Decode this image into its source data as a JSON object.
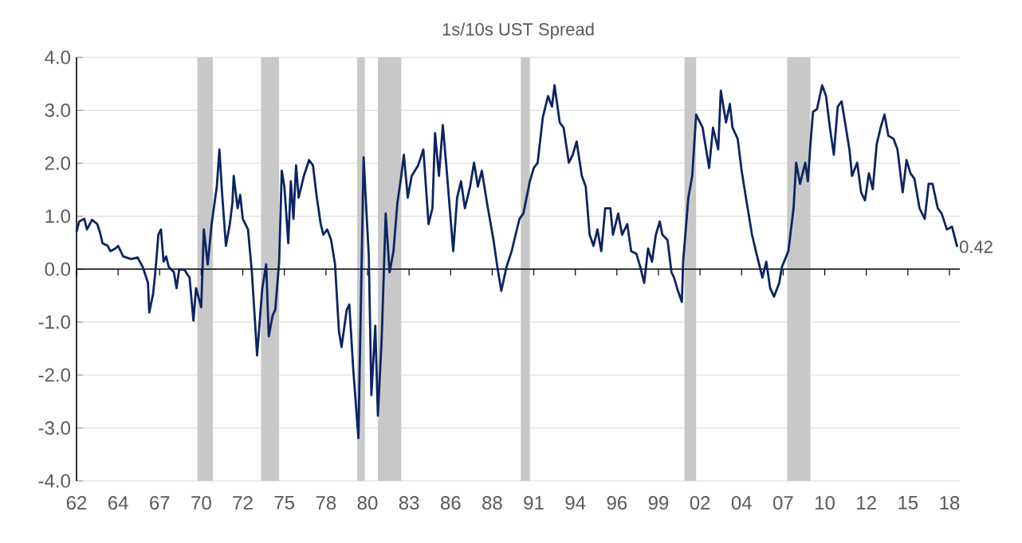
{
  "chart_data": {
    "type": "line",
    "title": "1s/10s UST Spread",
    "x": [
      "1962-01",
      "1962-03",
      "1962-07",
      "1962-09",
      "1963-01",
      "1963-05",
      "1963-07",
      "1963-09",
      "1964-01",
      "1964-03",
      "1964-07",
      "1964-09",
      "1965-01",
      "1965-07",
      "1965-12",
      "1966-04",
      "1966-08",
      "1966-09",
      "1966-12",
      "1967-02",
      "1967-04",
      "1967-06",
      "1967-08",
      "1967-10",
      "1967-12",
      "1968-04",
      "1968-06",
      "1968-08",
      "1968-12",
      "1969-04",
      "1969-07",
      "1969-09",
      "1970-01",
      "1970-03",
      "1970-06",
      "1970-09",
      "1971-01",
      "1971-03",
      "1971-05",
      "1971-08",
      "1971-11",
      "1972-01",
      "1972-02",
      "1972-05",
      "1972-07",
      "1972-09",
      "1973-01",
      "1973-04",
      "1973-08",
      "1973-12",
      "1974-03",
      "1974-05",
      "1974-08",
      "1974-10",
      "1975-01",
      "1975-03",
      "1975-05",
      "1975-08",
      "1975-10",
      "1975-12",
      "1976-02",
      "1976-04",
      "1976-08",
      "1976-12",
      "1977-03",
      "1977-06",
      "1977-09",
      "1977-11",
      "1978-02",
      "1978-05",
      "1978-08",
      "1978-11",
      "1979-01",
      "1979-05",
      "1979-07",
      "1979-10",
      "1980-02",
      "1980-06",
      "1980-10",
      "1980-12",
      "1981-03",
      "1981-05",
      "1981-08",
      "1981-11",
      "1982-02",
      "1982-05",
      "1982-08",
      "1982-11",
      "1983-01",
      "1983-04",
      "1983-07",
      "1983-12",
      "1984-04",
      "1984-08",
      "1984-11",
      "1985-01",
      "1985-04",
      "1985-07",
      "1985-10",
      "1985-12",
      "1986-03",
      "1986-06",
      "1986-09",
      "1986-12",
      "1987-04",
      "1987-07",
      "1987-10",
      "1988-01",
      "1988-05",
      "1988-10",
      "1989-01",
      "1989-04",
      "1989-08",
      "1989-12",
      "1990-03",
      "1990-06",
      "1990-09",
      "1991-02",
      "1991-05",
      "1991-08",
      "1991-12",
      "1992-04",
      "1992-07",
      "1992-09",
      "1993-01",
      "1993-04",
      "1993-08",
      "1993-11",
      "1994-02",
      "1994-06",
      "1994-09",
      "1994-12",
      "1995-03",
      "1995-06",
      "1995-09",
      "1995-12",
      "1996-04",
      "1996-06",
      "1996-10",
      "1997-01",
      "1997-05",
      "1997-08",
      "1997-12",
      "1998-03",
      "1998-06",
      "1998-09",
      "1998-12",
      "1999-03",
      "1999-06",
      "1999-08",
      "1999-12",
      "2000-03",
      "2000-05",
      "2000-08",
      "2000-11",
      "2000-12",
      "2001-04",
      "2001-07",
      "2001-10",
      "2002-03",
      "2002-08",
      "2002-11",
      "2003-03",
      "2003-05",
      "2003-09",
      "2003-12",
      "2004-02",
      "2004-06",
      "2004-09",
      "2005-01",
      "2005-05",
      "2005-08",
      "2005-11",
      "2006-01",
      "2006-04",
      "2006-07",
      "2006-10",
      "2007-02",
      "2007-04",
      "2007-09",
      "2008-01",
      "2008-03",
      "2008-06",
      "2008-10",
      "2008-12",
      "2009-02",
      "2009-04",
      "2009-07",
      "2009-11",
      "2010-02",
      "2010-05",
      "2010-08",
      "2010-11",
      "2011-02",
      "2011-04",
      "2011-08",
      "2011-10",
      "2012-02",
      "2012-05",
      "2012-08",
      "2012-11",
      "2013-02",
      "2013-05",
      "2013-08",
      "2013-11",
      "2014-02",
      "2014-06",
      "2014-09",
      "2015-01",
      "2015-04",
      "2015-07",
      "2015-10",
      "2016-02",
      "2016-06",
      "2016-09",
      "2016-12",
      "2017-04",
      "2017-07",
      "2017-11",
      "2018-03",
      "2018-07"
    ],
    "series": [
      {
        "color": "#0d2463",
        "values": [
          0.7,
          0.9,
          0.95,
          0.75,
          0.93,
          0.85,
          0.7,
          0.49,
          0.44,
          0.34,
          0.39,
          0.44,
          0.24,
          0.19,
          0.22,
          0.04,
          -0.26,
          -0.82,
          -0.46,
          0.04,
          0.65,
          0.75,
          0.14,
          0.24,
          0.04,
          -0.06,
          -0.36,
          -0.01,
          -0.01,
          -0.16,
          -0.97,
          -0.36,
          -0.72,
          0.75,
          0.09,
          0.85,
          1.56,
          2.26,
          1.45,
          0.44,
          0.85,
          1.25,
          1.76,
          1.15,
          1.4,
          0.95,
          0.75,
          -0.06,
          -1.63,
          -0.36,
          0.09,
          -1.27,
          -0.87,
          -0.77,
          0.14,
          1.86,
          1.56,
          0.49,
          1.66,
          0.95,
          1.96,
          1.35,
          1.76,
          2.06,
          1.96,
          1.35,
          0.85,
          0.65,
          0.75,
          0.55,
          0.09,
          -1.17,
          -1.47,
          -0.77,
          -0.67,
          -1.88,
          -3.19,
          2.11,
          0.24,
          -2.38,
          -1.07,
          -2.77,
          -1.27,
          1.05,
          -0.06,
          0.34,
          1.25,
          1.76,
          2.16,
          1.35,
          1.76,
          1.96,
          2.26,
          0.85,
          1.15,
          2.57,
          1.76,
          2.72,
          1.86,
          1.25,
          0.34,
          1.35,
          1.66,
          1.15,
          1.56,
          2.01,
          1.56,
          1.86,
          1.25,
          0.55,
          0.04,
          -0.41,
          0.04,
          0.34,
          0.65,
          0.95,
          1.05,
          1.66,
          1.91,
          2.01,
          2.87,
          3.27,
          3.07,
          3.47,
          2.77,
          2.67,
          2.01,
          2.16,
          2.41,
          1.76,
          1.56,
          0.65,
          0.44,
          0.75,
          0.34,
          1.15,
          1.15,
          0.65,
          1.05,
          0.65,
          0.85,
          0.34,
          0.29,
          0.04,
          -0.26,
          0.39,
          0.14,
          0.65,
          0.9,
          0.65,
          0.55,
          -0.06,
          -0.16,
          -0.41,
          -0.62,
          0.14,
          1.35,
          1.76,
          2.92,
          2.67,
          1.91,
          2.67,
          2.26,
          3.37,
          2.77,
          3.12,
          2.67,
          2.46,
          1.86,
          1.25,
          0.65,
          0.34,
          0.04,
          -0.16,
          0.14,
          -0.36,
          -0.52,
          -0.26,
          0.04,
          0.34,
          1.15,
          2.01,
          1.61,
          2.01,
          1.66,
          2.36,
          2.97,
          3.02,
          3.47,
          3.27,
          2.67,
          2.16,
          3.07,
          3.17,
          2.87,
          2.26,
          1.76,
          2.01,
          1.45,
          1.3,
          1.81,
          1.51,
          2.36,
          2.67,
          2.92,
          2.52,
          2.46,
          2.26,
          1.45,
          2.06,
          1.81,
          1.71,
          1.15,
          0.95,
          1.61,
          1.61,
          1.15,
          1.05,
          0.75,
          0.8,
          0.42
        ]
      }
    ],
    "xlim": [
      "1962-01",
      "2018-09"
    ],
    "xticks": [
      {
        "value": "1962-01",
        "label": "62"
      },
      {
        "value": "1964-09",
        "label": "64"
      },
      {
        "value": "1967-05",
        "label": "67"
      },
      {
        "value": "1970-01",
        "label": "70"
      },
      {
        "value": "1972-09",
        "label": "72"
      },
      {
        "value": "1975-05",
        "label": "75"
      },
      {
        "value": "1978-01",
        "label": "78"
      },
      {
        "value": "1980-09",
        "label": "80"
      },
      {
        "value": "1983-05",
        "label": "83"
      },
      {
        "value": "1986-01",
        "label": "86"
      },
      {
        "value": "1988-09",
        "label": "88"
      },
      {
        "value": "1991-05",
        "label": "91"
      },
      {
        "value": "1994-01",
        "label": "94"
      },
      {
        "value": "1996-09",
        "label": "96"
      },
      {
        "value": "1999-05",
        "label": "99"
      },
      {
        "value": "2002-01",
        "label": "02"
      },
      {
        "value": "2004-09",
        "label": "04"
      },
      {
        "value": "2007-05",
        "label": "07"
      },
      {
        "value": "2010-01",
        "label": "10"
      },
      {
        "value": "2012-09",
        "label": "12"
      },
      {
        "value": "2015-05",
        "label": "15"
      },
      {
        "value": "2018-01",
        "label": "18"
      }
    ],
    "ylim": [
      -4,
      4
    ],
    "yticks": [
      {
        "value": -4,
        "label": "-4.0"
      },
      {
        "value": -3,
        "label": "-3.0"
      },
      {
        "value": -2,
        "label": "-2.0"
      },
      {
        "value": -1,
        "label": "-1.0"
      },
      {
        "value": 0,
        "label": "0.0"
      },
      {
        "value": 1,
        "label": "1.0"
      },
      {
        "value": 2,
        "label": "2.0"
      },
      {
        "value": 3,
        "label": "3.0"
      },
      {
        "value": 4,
        "label": "4.0"
      }
    ],
    "grid": "y",
    "marker": "none",
    "line_style": "solid",
    "bands": [
      {
        "axis": "x",
        "from": "1969-10",
        "to": "1970-10",
        "color": "#c8c8c8"
      },
      {
        "axis": "x",
        "from": "1973-11",
        "to": "1975-01",
        "color": "#c8c8c8"
      },
      {
        "axis": "x",
        "from": "1980-01",
        "to": "1980-07",
        "color": "#c8c8c8"
      },
      {
        "axis": "x",
        "from": "1981-05",
        "to": "1982-11",
        "color": "#c8c8c8"
      },
      {
        "axis": "x",
        "from": "1990-07",
        "to": "1991-02",
        "color": "#c8c8c8"
      },
      {
        "axis": "x",
        "from": "2001-01",
        "to": "2001-10",
        "color": "#c8c8c8"
      },
      {
        "axis": "x",
        "from": "2007-08",
        "to": "2009-02",
        "color": "#c8c8c8"
      }
    ],
    "annotations": [
      {
        "text": "0.42",
        "x": "2018-07",
        "y": 0.42
      }
    ]
  }
}
